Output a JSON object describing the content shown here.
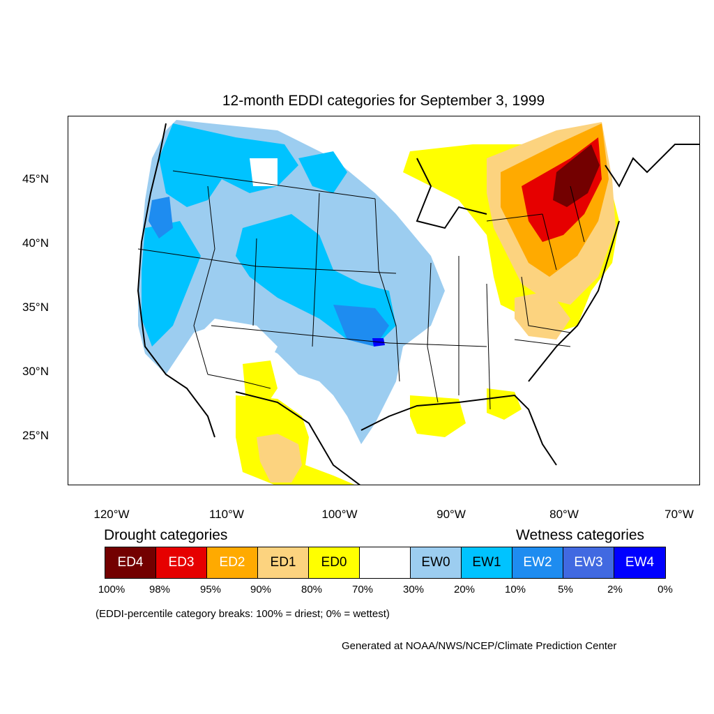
{
  "title": "12-month EDDI categories for September 3, 1999",
  "latitude_labels": [
    "45°N",
    "40°N",
    "35°N",
    "30°N",
    "25°N"
  ],
  "longitude_labels": [
    "120°W",
    "110°W",
    "100°W",
    "90°W",
    "80°W",
    "70°W"
  ],
  "legend": {
    "drought_title": "Drought categories",
    "wetness_title": "Wetness categories",
    "categories": [
      {
        "label": "ED4",
        "color": "#730000",
        "text_color": "#ffffff"
      },
      {
        "label": "ED3",
        "color": "#e60000",
        "text_color": "#ffffff"
      },
      {
        "label": "ED2",
        "color": "#ffaa00",
        "text_color": "#ffffff"
      },
      {
        "label": "ED1",
        "color": "#fcd37f",
        "text_color": "#000000"
      },
      {
        "label": "ED0",
        "color": "#ffff00",
        "text_color": "#000000"
      },
      {
        "label": "",
        "color": "#ffffff",
        "text_color": "#000000"
      },
      {
        "label": "EW0",
        "color": "#9ccdf0",
        "text_color": "#000000"
      },
      {
        "label": "EW1",
        "color": "#00c3ff",
        "text_color": "#000000"
      },
      {
        "label": "EW2",
        "color": "#1e8cf0",
        "text_color": "#ffffff"
      },
      {
        "label": "EW3",
        "color": "#4169e1",
        "text_color": "#ffffff"
      },
      {
        "label": "EW4",
        "color": "#0000ff",
        "text_color": "#ffffff"
      }
    ],
    "percentile_breaks": [
      "100%",
      "98%",
      "95%",
      "90%",
      "80%",
      "70%",
      "30%",
      "20%",
      "10%",
      "5%",
      "2%",
      "0%"
    ]
  },
  "note": "(EDDI-percentile category breaks: 100% = driest; 0% = wettest)",
  "credit": "Generated at NOAA/NWS/NCEP/Climate Prediction Center"
}
